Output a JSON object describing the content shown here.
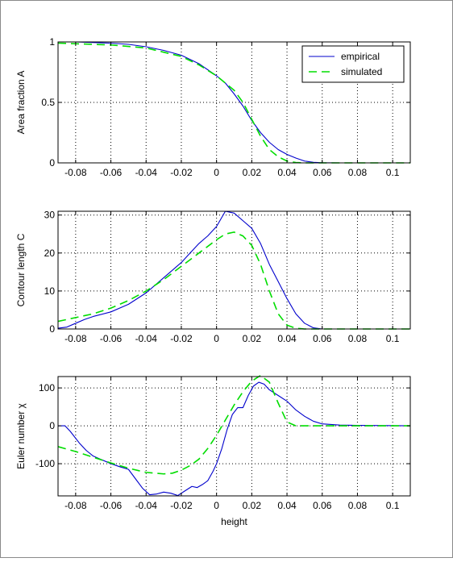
{
  "chart_data": [
    {
      "type": "line",
      "ylabel": "Area fraction A",
      "xlabel": "",
      "xlim": [
        -0.09,
        0.11
      ],
      "ylim": [
        0,
        1
      ],
      "xticks": [
        -0.08,
        -0.06,
        -0.04,
        -0.02,
        0,
        0.02,
        0.04,
        0.06,
        0.08,
        0.1
      ],
      "xtick_labels": [
        "-0.08",
        "-0.06",
        "-0.04",
        "-0.02",
        "0",
        "0.02",
        "0.04",
        "0.06",
        "0.08",
        "0.1"
      ],
      "yticks": [
        0,
        0.5,
        1
      ],
      "ytick_labels": [
        "0",
        "0.5",
        "1"
      ],
      "grid": true,
      "legend": {
        "position": "top-right",
        "entries": [
          "empirical",
          "simulated"
        ]
      },
      "series": [
        {
          "name": "empirical",
          "color": "#0000cc",
          "style": "solid",
          "points": [
            [
              -0.09,
              1.0
            ],
            [
              -0.08,
              1.0
            ],
            [
              -0.07,
              0.995
            ],
            [
              -0.06,
              0.99
            ],
            [
              -0.05,
              0.98
            ],
            [
              -0.04,
              0.96
            ],
            [
              -0.03,
              0.93
            ],
            [
              -0.02,
              0.89
            ],
            [
              -0.01,
              0.82
            ],
            [
              0,
              0.72
            ],
            [
              0.005,
              0.66
            ],
            [
              0.01,
              0.57
            ],
            [
              0.015,
              0.47
            ],
            [
              0.02,
              0.35
            ],
            [
              0.025,
              0.25
            ],
            [
              0.03,
              0.17
            ],
            [
              0.035,
              0.11
            ],
            [
              0.04,
              0.07
            ],
            [
              0.045,
              0.04
            ],
            [
              0.05,
              0.015
            ],
            [
              0.055,
              0.005
            ],
            [
              0.06,
              0.001
            ],
            [
              0.07,
              0.0
            ],
            [
              0.11,
              0.0
            ]
          ]
        },
        {
          "name": "simulated",
          "color": "#00dd00",
          "style": "dashed",
          "points": [
            [
              -0.09,
              0.99
            ],
            [
              -0.08,
              0.985
            ],
            [
              -0.06,
              0.975
            ],
            [
              -0.04,
              0.95
            ],
            [
              -0.02,
              0.88
            ],
            [
              -0.01,
              0.81
            ],
            [
              0,
              0.72
            ],
            [
              0.01,
              0.6
            ],
            [
              0.015,
              0.5
            ],
            [
              0.02,
              0.36
            ],
            [
              0.025,
              0.22
            ],
            [
              0.03,
              0.11
            ],
            [
              0.035,
              0.05
            ],
            [
              0.04,
              0.015
            ],
            [
              0.045,
              0.003
            ],
            [
              0.05,
              0.0
            ],
            [
              0.11,
              0.0
            ]
          ]
        }
      ]
    },
    {
      "type": "line",
      "ylabel": "Contour length C",
      "xlabel": "",
      "xlim": [
        -0.09,
        0.11
      ],
      "ylim": [
        0,
        31
      ],
      "xticks": [
        -0.08,
        -0.06,
        -0.04,
        -0.02,
        0,
        0.02,
        0.04,
        0.06,
        0.08,
        0.1
      ],
      "xtick_labels": [
        "-0.08",
        "-0.06",
        "-0.04",
        "-0.02",
        "0",
        "0.02",
        "0.04",
        "0.06",
        "0.08",
        "0.1"
      ],
      "yticks": [
        0,
        10,
        20,
        30
      ],
      "ytick_labels": [
        "0",
        "10",
        "20",
        "30"
      ],
      "grid": true,
      "series": [
        {
          "name": "empirical",
          "color": "#0000cc",
          "style": "solid",
          "points": [
            [
              -0.09,
              0.2
            ],
            [
              -0.085,
              0.5
            ],
            [
              -0.08,
              1.5
            ],
            [
              -0.075,
              2.5
            ],
            [
              -0.07,
              3.3
            ],
            [
              -0.06,
              4.5
            ],
            [
              -0.05,
              6.5
            ],
            [
              -0.04,
              9.5
            ],
            [
              -0.03,
              13.5
            ],
            [
              -0.02,
              17.5
            ],
            [
              -0.015,
              20
            ],
            [
              -0.01,
              22.5
            ],
            [
              -0.005,
              24.5
            ],
            [
              0,
              27
            ],
            [
              0.005,
              31
            ],
            [
              0.01,
              30.5
            ],
            [
              0.015,
              28.5
            ],
            [
              0.02,
              26.5
            ],
            [
              0.025,
              22.5
            ],
            [
              0.03,
              17
            ],
            [
              0.035,
              12.5
            ],
            [
              0.04,
              8
            ],
            [
              0.045,
              4
            ],
            [
              0.05,
              1.5
            ],
            [
              0.055,
              0.3
            ],
            [
              0.06,
              0.0
            ],
            [
              0.11,
              0.0
            ]
          ]
        },
        {
          "name": "simulated",
          "color": "#00dd00",
          "style": "dashed",
          "points": [
            [
              -0.09,
              2
            ],
            [
              -0.08,
              3
            ],
            [
              -0.07,
              4
            ],
            [
              -0.06,
              5.5
            ],
            [
              -0.05,
              7.5
            ],
            [
              -0.04,
              10
            ],
            [
              -0.03,
              13
            ],
            [
              -0.02,
              16.5
            ],
            [
              -0.01,
              20
            ],
            [
              0,
              23.5
            ],
            [
              0.005,
              25
            ],
            [
              0.01,
              25.5
            ],
            [
              0.015,
              24.5
            ],
            [
              0.02,
              22
            ],
            [
              0.025,
              17
            ],
            [
              0.03,
              10
            ],
            [
              0.035,
              4
            ],
            [
              0.04,
              1
            ],
            [
              0.045,
              0.2
            ],
            [
              0.05,
              0.0
            ],
            [
              0.11,
              0.0
            ]
          ]
        }
      ]
    },
    {
      "type": "line",
      "ylabel": "Euler number χ",
      "xlabel": "height",
      "xlim": [
        -0.09,
        0.11
      ],
      "ylim": [
        -185,
        130
      ],
      "xticks": [
        -0.08,
        -0.06,
        -0.04,
        -0.02,
        0,
        0.02,
        0.04,
        0.06,
        0.08,
        0.1
      ],
      "xtick_labels": [
        "-0.08",
        "-0.06",
        "-0.04",
        "-0.02",
        "0",
        "0.02",
        "0.04",
        "0.06",
        "0.08",
        "0.1"
      ],
      "yticks": [
        -100,
        0,
        100
      ],
      "ytick_labels": [
        "-100",
        "0",
        "100"
      ],
      "grid": true,
      "series": [
        {
          "name": "empirical",
          "color": "#0000cc",
          "style": "solid",
          "points": [
            [
              -0.09,
              0
            ],
            [
              -0.086,
              0
            ],
            [
              -0.083,
              -15
            ],
            [
              -0.078,
              -45
            ],
            [
              -0.074,
              -65
            ],
            [
              -0.07,
              -80
            ],
            [
              -0.065,
              -90
            ],
            [
              -0.06,
              -100
            ],
            [
              -0.055,
              -108
            ],
            [
              -0.05,
              -115
            ],
            [
              -0.046,
              -140
            ],
            [
              -0.042,
              -165
            ],
            [
              -0.038,
              -182
            ],
            [
              -0.034,
              -180
            ],
            [
              -0.03,
              -175
            ],
            [
              -0.026,
              -178
            ],
            [
              -0.022,
              -184
            ],
            [
              -0.018,
              -172
            ],
            [
              -0.014,
              -160
            ],
            [
              -0.011,
              -163
            ],
            [
              -0.008,
              -155
            ],
            [
              -0.005,
              -145
            ],
            [
              -0.002,
              -120
            ],
            [
              0,
              -100
            ],
            [
              0.003,
              -60
            ],
            [
              0.006,
              -10
            ],
            [
              0.009,
              30
            ],
            [
              0.012,
              48
            ],
            [
              0.015,
              48
            ],
            [
              0.018,
              80
            ],
            [
              0.021,
              105
            ],
            [
              0.024,
              115
            ],
            [
              0.027,
              110
            ],
            [
              0.03,
              95
            ],
            [
              0.035,
              80
            ],
            [
              0.04,
              65
            ],
            [
              0.045,
              42
            ],
            [
              0.05,
              25
            ],
            [
              0.055,
              12
            ],
            [
              0.06,
              5
            ],
            [
              0.07,
              2
            ],
            [
              0.08,
              1
            ],
            [
              0.11,
              0
            ]
          ]
        },
        {
          "name": "simulated",
          "color": "#00dd00",
          "style": "dashed",
          "points": [
            [
              -0.09,
              -55
            ],
            [
              -0.08,
              -68
            ],
            [
              -0.07,
              -83
            ],
            [
              -0.06,
              -98
            ],
            [
              -0.05,
              -112
            ],
            [
              -0.04,
              -123
            ],
            [
              -0.03,
              -127
            ],
            [
              -0.025,
              -125
            ],
            [
              -0.02,
              -117
            ],
            [
              -0.015,
              -105
            ],
            [
              -0.01,
              -88
            ],
            [
              -0.005,
              -60
            ],
            [
              0,
              -25
            ],
            [
              0.005,
              15
            ],
            [
              0.01,
              55
            ],
            [
              0.015,
              90
            ],
            [
              0.02,
              118
            ],
            [
              0.025,
              133
            ],
            [
              0.03,
              115
            ],
            [
              0.035,
              60
            ],
            [
              0.04,
              10
            ],
            [
              0.045,
              0
            ],
            [
              0.11,
              0
            ]
          ]
        }
      ]
    }
  ]
}
